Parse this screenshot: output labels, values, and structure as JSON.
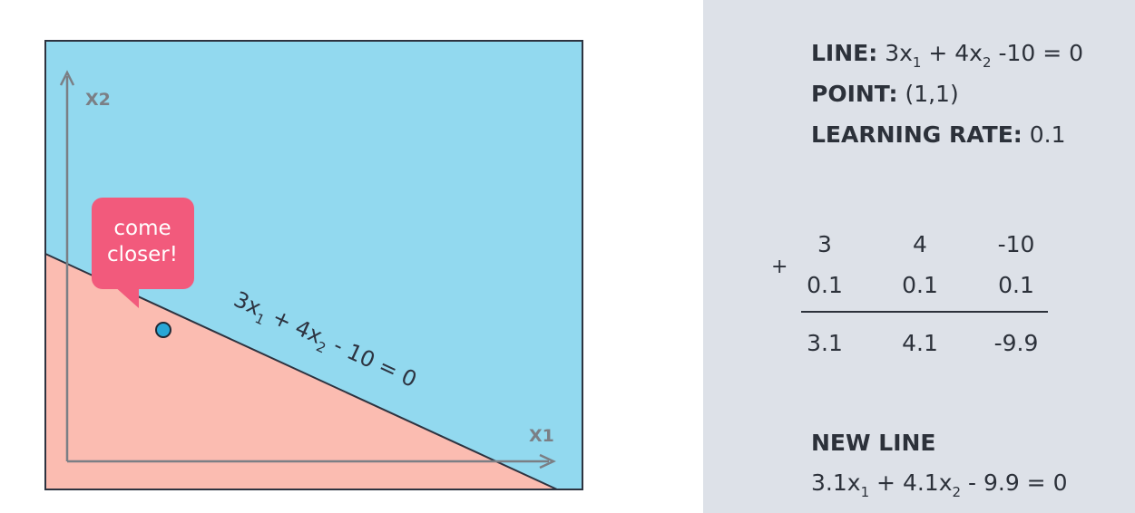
{
  "plot": {
    "x_axis_label": "X1",
    "y_axis_label": "X2",
    "line_label": {
      "parts": [
        "3x",
        "1",
        " + 4x",
        "2",
        " - 10 = 0"
      ]
    },
    "speech_bubble": {
      "line1": "come",
      "line2": "closer!"
    },
    "colors": {
      "positive_region": "#92d9ef",
      "negative_region": "#fbbcb1",
      "bubble": "#f25a7c",
      "point": "#29a7d6",
      "axis": "#7b7f85"
    }
  },
  "info": {
    "line_label": "LINE:",
    "line_value": {
      "a": "3x",
      "s1": "1",
      "b": " + 4x",
      "s2": "2",
      "c": " -10 = 0"
    },
    "point_label": "POINT:",
    "point_value": "(1,1)",
    "rate_label": "LEARNING RATE:",
    "rate_value": "0.1"
  },
  "arithmetic": {
    "operator": "+",
    "row1": [
      "3",
      "4",
      "-10"
    ],
    "row2": [
      "0.1",
      "0.1",
      "0.1"
    ],
    "result": [
      "3.1",
      "4.1",
      "-9.9"
    ]
  },
  "new_line": {
    "label": "NEW LINE",
    "formula": {
      "a": "3.1x",
      "s1": "1",
      "b": " + 4.1x",
      "s2": "2",
      "c": " - 9.9 = 0"
    }
  }
}
